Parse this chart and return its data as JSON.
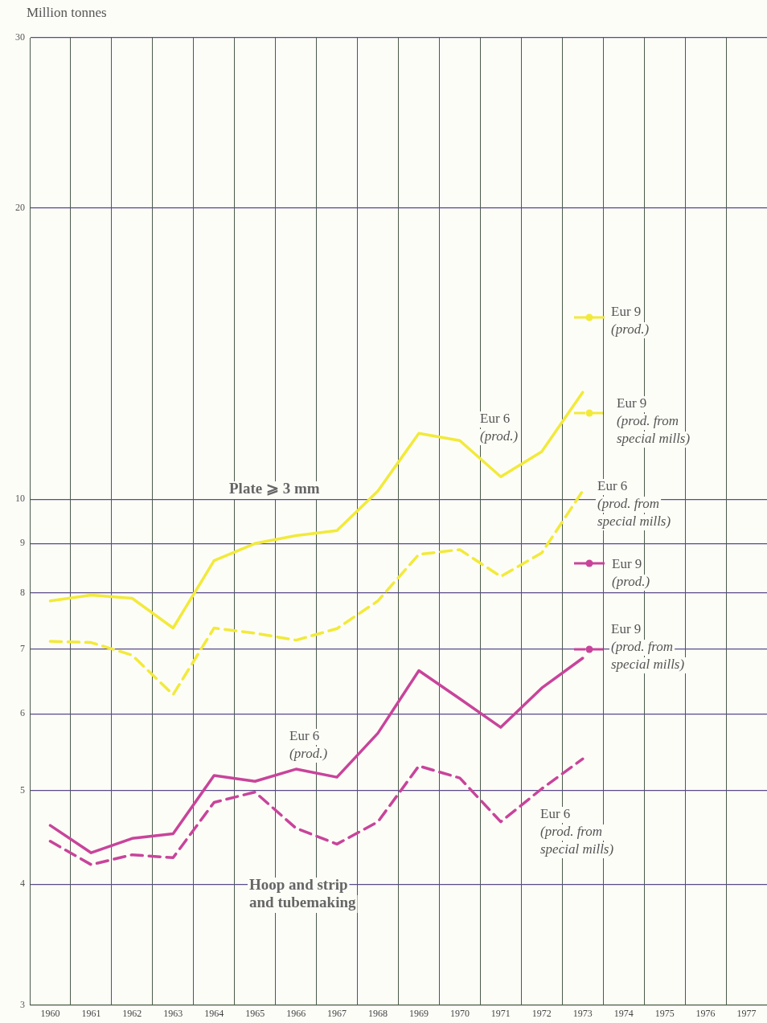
{
  "chart_data": {
    "type": "line",
    "ylabel": "Million tonnes",
    "log": true,
    "grid": true,
    "legend": "right",
    "categories": [
      "1960",
      "1961",
      "1962",
      "1963",
      "1964",
      "1965",
      "1966",
      "1967",
      "1968",
      "1969",
      "1970",
      "1971",
      "1972",
      "1973",
      "1974",
      "1975",
      "1976",
      "1977"
    ],
    "ylim": [
      3,
      30
    ],
    "yticks": [
      3,
      4,
      5,
      6,
      7,
      8,
      9,
      10,
      20,
      30
    ],
    "annotations": [
      "Plate ⩾ 3 mm",
      "Hoop and strip and tubemaking"
    ],
    "series": [
      {
        "name": "Eur 6 (prod.)",
        "color": "#f2ea3a",
        "line_style": "solid",
        "values": [
          7.85,
          7.96,
          7.9,
          7.36,
          8.64,
          9.0,
          9.17,
          9.28,
          10.2,
          11.7,
          11.5,
          10.55,
          11.2,
          12.9,
          null,
          null,
          null,
          null
        ]
      },
      {
        "name": "Eur 6 (prod. from special mills)",
        "color": "#f2ea3a",
        "line_style": "dashed",
        "values": [
          7.13,
          7.11,
          6.9,
          6.28,
          7.36,
          7.27,
          7.15,
          7.35,
          7.85,
          8.77,
          8.87,
          8.32,
          8.8,
          10.2,
          null,
          null,
          null,
          null
        ]
      },
      {
        "name": "Eur 6 (prod.)",
        "color": "#c8449a",
        "line_style": "solid",
        "values": [
          4.6,
          4.31,
          4.46,
          4.51,
          5.18,
          5.11,
          5.26,
          5.16,
          5.73,
          6.65,
          6.22,
          5.81,
          6.38,
          6.85,
          null,
          null,
          null,
          null
        ]
      },
      {
        "name": "Eur 6 (prod. from special mills)",
        "color": "#c8449a",
        "line_style": "dashed",
        "values": [
          4.43,
          4.19,
          4.29,
          4.26,
          4.86,
          4.98,
          4.57,
          4.4,
          4.64,
          5.3,
          5.15,
          4.64,
          5.02,
          5.39,
          null,
          null,
          null,
          null
        ]
      },
      {
        "name": "Eur 9 (prod.)",
        "color": "#f2ea3a",
        "line_style": "solid",
        "marker": "circle",
        "values": [
          null,
          null,
          null,
          null,
          null,
          null,
          null,
          null,
          null,
          null,
          null,
          null,
          null,
          null,
          null,
          null,
          null,
          null
        ]
      },
      {
        "name": "Eur 9 (prod. from special mills)",
        "color": "#f2ea3a",
        "line_style": "dashed",
        "marker": "circle",
        "values": [
          null,
          null,
          null,
          null,
          null,
          null,
          null,
          null,
          null,
          null,
          null,
          null,
          null,
          null,
          null,
          null,
          null,
          null
        ]
      },
      {
        "name": "Eur 9 (prod.)",
        "color": "#c8449a",
        "line_style": "solid",
        "marker": "circle",
        "values": [
          null,
          null,
          null,
          null,
          null,
          null,
          null,
          null,
          null,
          null,
          null,
          null,
          null,
          null,
          null,
          null,
          null,
          null
        ]
      },
      {
        "name": "Eur 9 (prod. from special mills)",
        "color": "#c8449a",
        "line_style": "dashed",
        "marker": "circle",
        "values": [
          null,
          null,
          null,
          null,
          null,
          null,
          null,
          null,
          null,
          null,
          null,
          null,
          null,
          null,
          null,
          null,
          null,
          null
        ]
      }
    ]
  }
}
